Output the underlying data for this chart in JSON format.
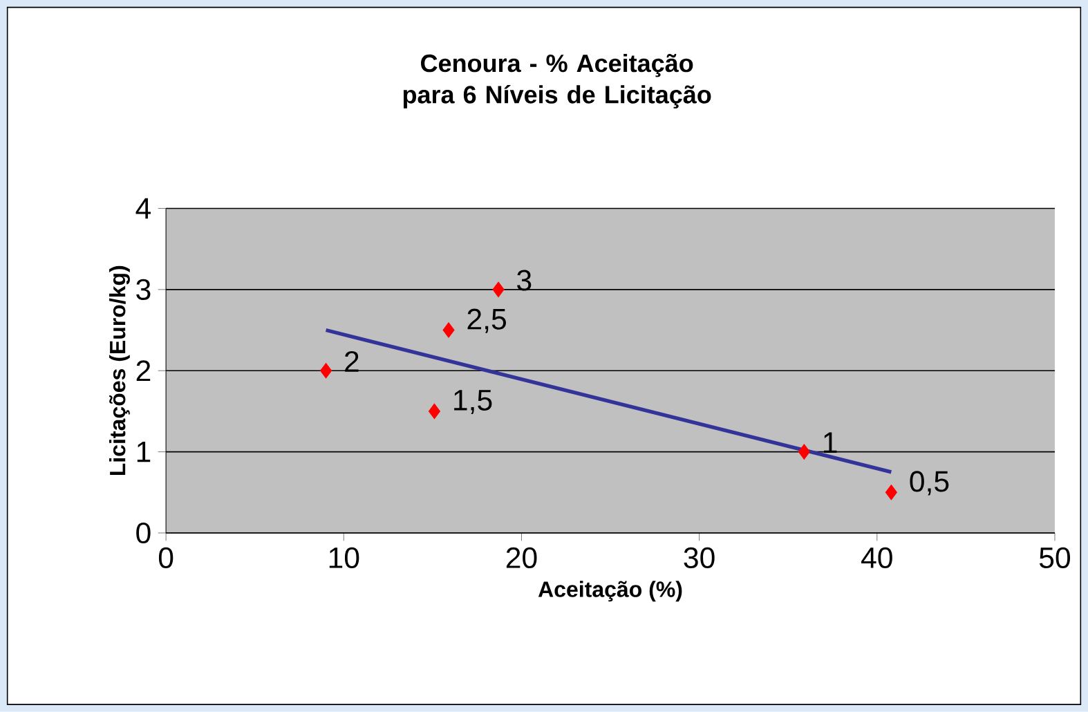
{
  "chart_data": {
    "type": "scatter",
    "title": "Cenoura - % Aceitação para  6 Níveis de Licitação",
    "xlabel": "Aceitação (%)",
    "ylabel": "Licitações (Euro/kg)",
    "xlim": [
      0,
      50
    ],
    "xticks": [
      0,
      10,
      20,
      30,
      40,
      50
    ],
    "ylim": [
      0,
      4
    ],
    "yticks": [
      0,
      1,
      2,
      3,
      4
    ],
    "grid": "y",
    "series": [
      {
        "color": "#ff0000",
        "marker": "diamond",
        "x": [
          9.0,
          15.9,
          18.7,
          15.1,
          35.9,
          40.8
        ],
        "values": [
          2,
          2.5,
          3,
          1.5,
          1,
          0.5
        ],
        "value_labels": [
          "2",
          "2,5",
          "3",
          "1,5",
          "1",
          "0,5"
        ]
      },
      {
        "type": "line",
        "color": "#333399",
        "marker": "none",
        "line_style": "solid",
        "x": [
          9.0,
          40.8
        ],
        "values": [
          2.5,
          0.75
        ]
      }
    ]
  }
}
